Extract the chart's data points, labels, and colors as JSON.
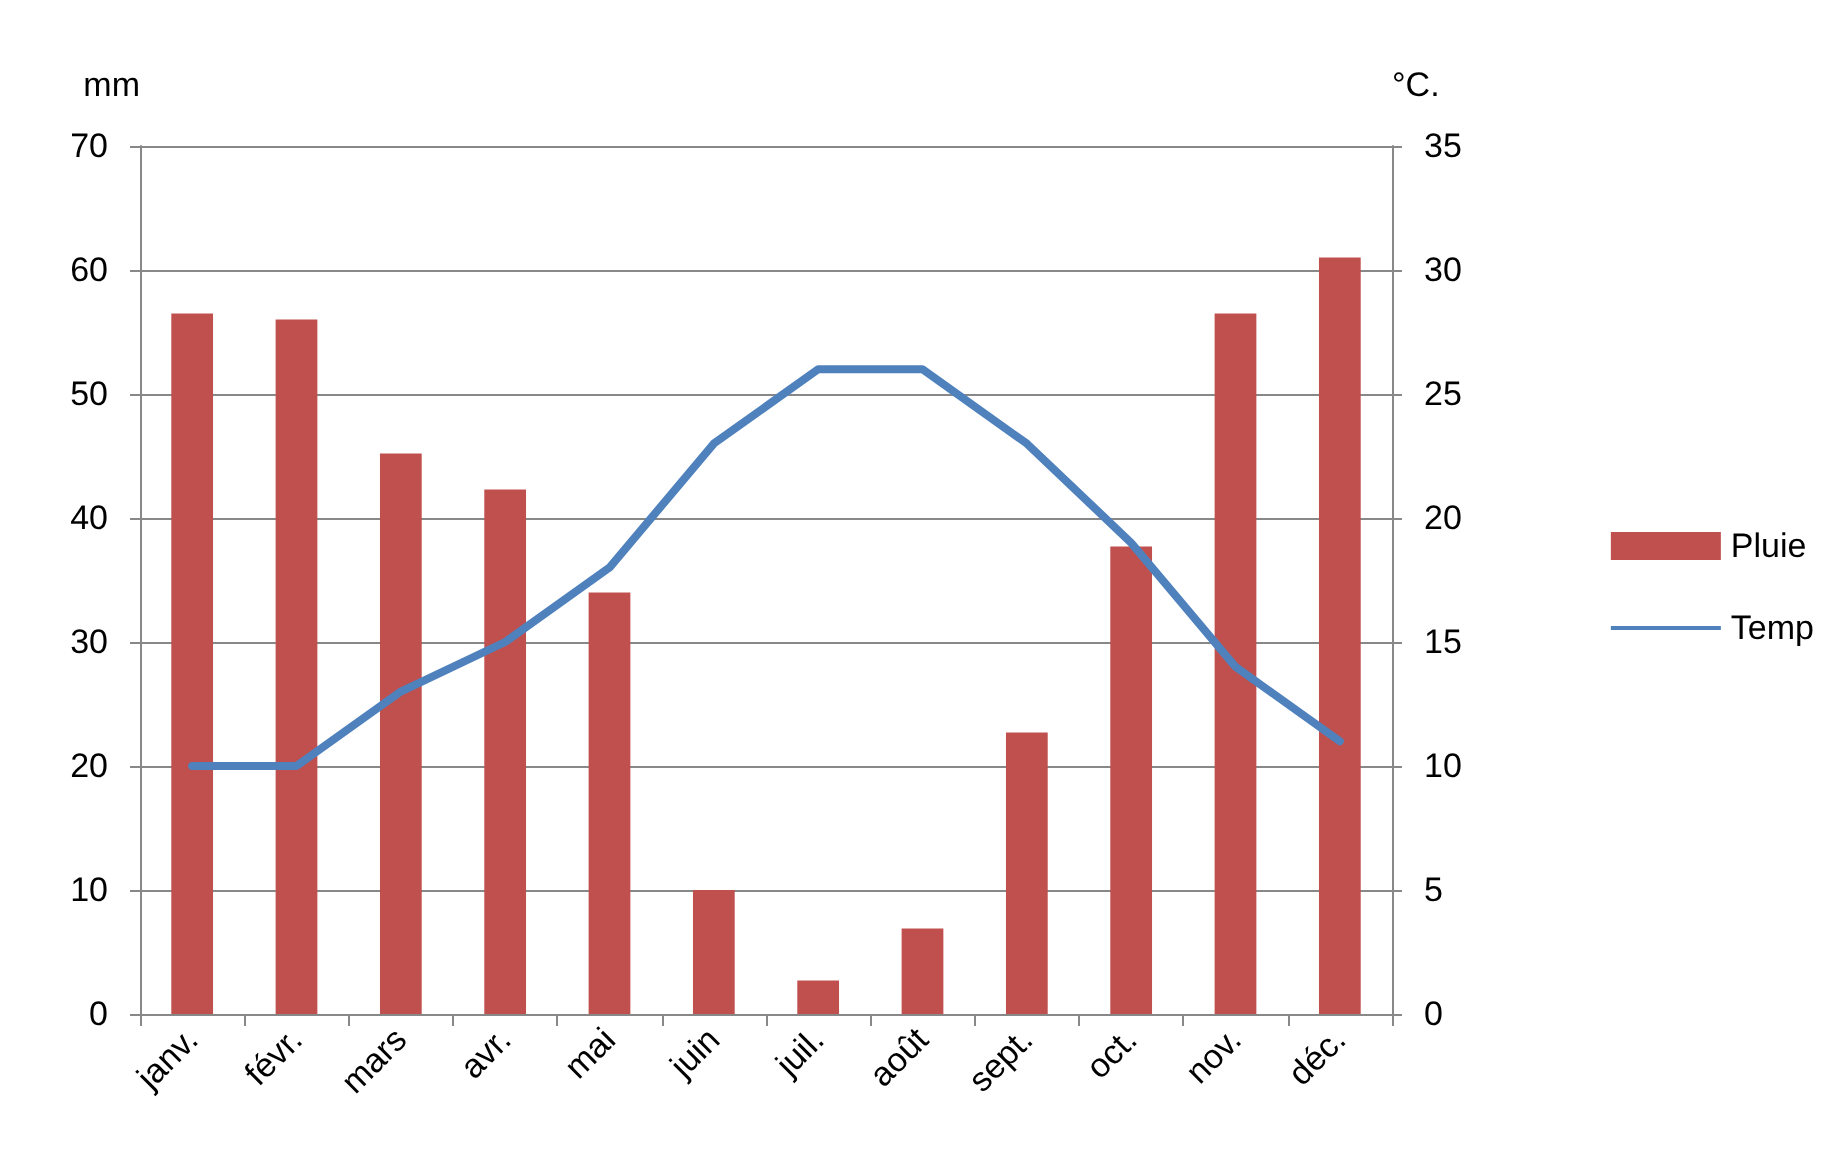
{
  "chart_data": {
    "type": "bar",
    "categories": [
      "janv.",
      "févr.",
      "mars",
      "avr.",
      "mai",
      "juin",
      "juil.",
      "août",
      "sept.",
      "oct.",
      "nov.",
      "déc."
    ],
    "series": [
      {
        "name": "Pluie",
        "color": "#c0504d",
        "values": [
          56.5,
          56,
          45.2,
          42.3,
          34,
          10,
          2.7,
          6.9,
          22.7,
          37.7,
          56.5,
          61
        ]
      },
      {
        "name": "Temp",
        "type": "line",
        "axis": "y2",
        "color": "#4f81bd",
        "values": [
          10,
          10,
          13,
          15,
          18,
          23,
          26,
          26,
          23,
          19,
          14,
          11
        ]
      }
    ],
    "ylabel": "mm",
    "y2label": "°C.",
    "ylim": [
      0,
      70
    ],
    "yticks": [
      0,
      10,
      20,
      30,
      40,
      50,
      60,
      70
    ],
    "y2lim": [
      0,
      35
    ],
    "y2ticks": [
      0,
      5,
      10,
      15,
      20,
      25,
      30,
      35
    ],
    "grid": "y",
    "legend": "right",
    "marker": "none",
    "line_style": "solid"
  }
}
